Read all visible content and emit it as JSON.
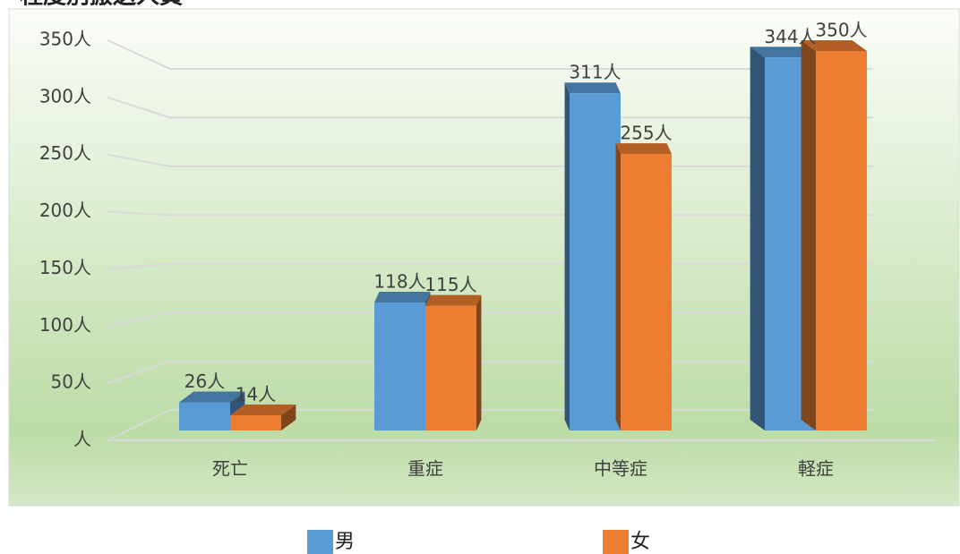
{
  "chart_data": {
    "type": "bar3d",
    "title": "程度別搬送人員",
    "categories": [
      "死亡",
      "重症",
      "中等症",
      "軽症"
    ],
    "series": [
      {
        "name": "男",
        "color": "#5b9bd5",
        "values": [
          26,
          118,
          311,
          344
        ],
        "value_labels": [
          "26人",
          "118人",
          "311人",
          "344人"
        ]
      },
      {
        "name": "女",
        "color": "#ed7d31",
        "values": [
          14,
          115,
          255,
          350
        ],
        "value_labels": [
          "14人",
          "115人",
          "255人",
          "350人"
        ]
      }
    ],
    "ylim": [
      0,
      350
    ],
    "yticks": [
      {
        "value": 0,
        "label": "人"
      },
      {
        "value": 50,
        "label": "50人"
      },
      {
        "value": 100,
        "label": "100人"
      },
      {
        "value": 150,
        "label": "150人"
      },
      {
        "value": 200,
        "label": "200人"
      },
      {
        "value": 250,
        "label": "250人"
      },
      {
        "value": 300,
        "label": "300人"
      },
      {
        "value": 350,
        "label": "350人"
      }
    ],
    "grid": true,
    "legend": "bottom"
  }
}
